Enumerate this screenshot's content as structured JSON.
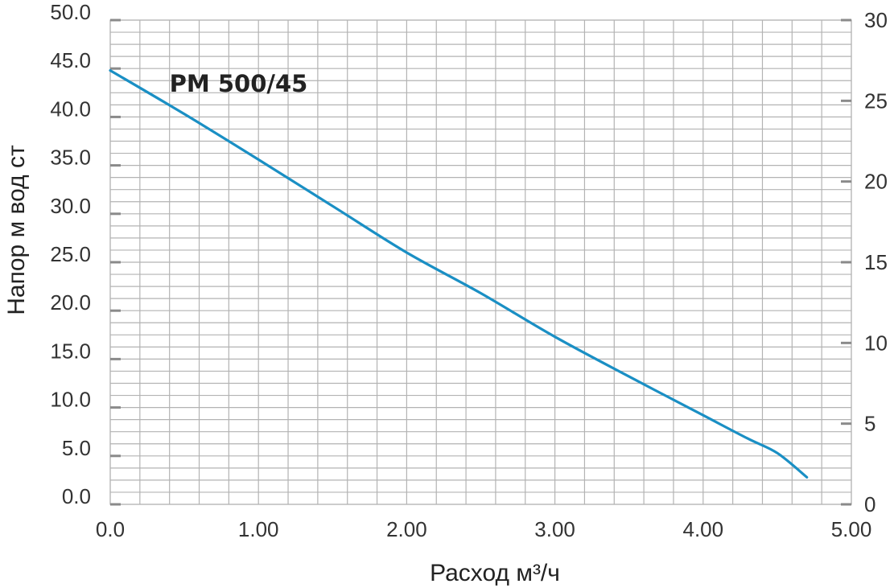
{
  "chart_data": {
    "type": "line",
    "title": "",
    "xlabel": "Расход м³/ч",
    "ylabel": "Напор м вод ст",
    "xlim": [
      0,
      5
    ],
    "ylim": [
      0,
      50
    ],
    "y2lim": [
      0,
      30
    ],
    "grid": true,
    "x_ticks": [
      "0.0",
      "1.00",
      "2.00",
      "3.00",
      "4.00",
      "5.00"
    ],
    "y_ticks": [
      "0.0",
      "5.0",
      "10.0",
      "15.0",
      "20.0",
      "25.0",
      "30.0",
      "35.0",
      "40.0",
      "45.0",
      "50.0"
    ],
    "y2_ticks": [
      "0",
      "5",
      "10",
      "15",
      "20",
      "25",
      "30"
    ],
    "series": [
      {
        "name": "PM 500/45",
        "color": "#1a8fc4",
        "x": [
          0,
          0.5,
          1.0,
          1.5,
          2.0,
          2.5,
          3.0,
          3.5,
          4.0,
          4.3,
          4.5,
          4.7
        ],
        "y": [
          44.8,
          40.3,
          35.6,
          30.8,
          26.0,
          21.8,
          17.3,
          13.2,
          9.2,
          6.8,
          5.3,
          2.8
        ]
      }
    ]
  }
}
